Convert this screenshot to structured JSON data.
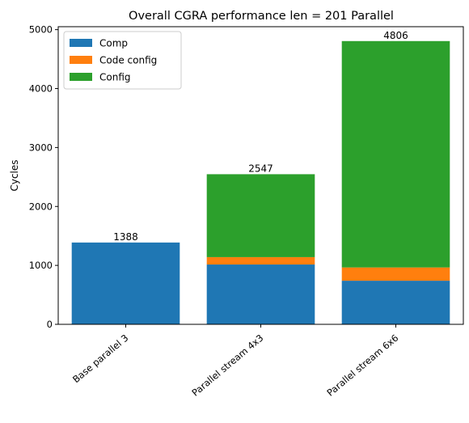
{
  "chart_data": {
    "type": "bar",
    "stacked": true,
    "title": "Overall CGRA performance len = 201 Parallel",
    "xlabel": "",
    "ylabel": "Cycles",
    "categories": [
      "Base parallel 3",
      "Parallel stream 4x3",
      "Parallel stream 6x6"
    ],
    "series": [
      {
        "name": "Comp",
        "color": "#1f77b4",
        "values": [
          1388,
          1015,
          740
        ]
      },
      {
        "name": "Code config",
        "color": "#ff7f0e",
        "values": [
          0,
          125,
          225
        ]
      },
      {
        "name": "Config",
        "color": "#2ca02c",
        "values": [
          0,
          1407,
          3841
        ]
      }
    ],
    "totals": [
      1388,
      2547,
      4806
    ],
    "ylim": [
      0,
      5050
    ],
    "yticks": [
      0,
      1000,
      2000,
      3000,
      4000,
      5000
    ],
    "grid": false,
    "legend_position": "top-left",
    "xtick_rotation": -40
  }
}
